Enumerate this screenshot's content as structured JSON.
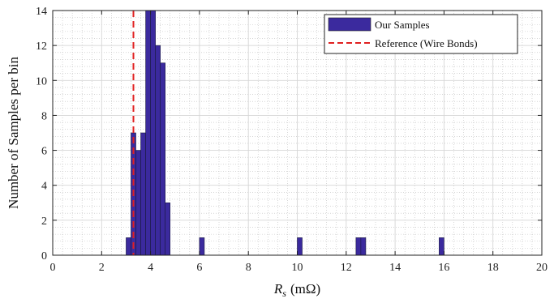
{
  "chart_data": {
    "type": "bar",
    "xlabel": "R_s (mΩ)",
    "xlabel_main": "R",
    "xlabel_sub": "s",
    "xlabel_unit": "(mΩ)",
    "ylabel": "Number of Samples per bin",
    "xlim": [
      0,
      20
    ],
    "ylim": [
      0,
      14
    ],
    "xticks": [
      0,
      2,
      4,
      6,
      8,
      10,
      12,
      14,
      16,
      18,
      20
    ],
    "yticks": [
      0,
      2,
      4,
      6,
      8,
      10,
      12,
      14
    ],
    "grid": true,
    "minor_grid": true,
    "legend_position": "top-right",
    "bin_width": 0.2,
    "series": [
      {
        "name": "Our Samples",
        "color": "#3b2a9e",
        "bins": [
          {
            "x0": 3.0,
            "x1": 3.2,
            "count": 1
          },
          {
            "x0": 3.2,
            "x1": 3.4,
            "count": 7
          },
          {
            "x0": 3.4,
            "x1": 3.6,
            "count": 6
          },
          {
            "x0": 3.6,
            "x1": 3.8,
            "count": 7
          },
          {
            "x0": 3.8,
            "x1": 4.0,
            "count": 14
          },
          {
            "x0": 4.0,
            "x1": 4.2,
            "count": 14
          },
          {
            "x0": 4.2,
            "x1": 4.4,
            "count": 12
          },
          {
            "x0": 4.4,
            "x1": 4.6,
            "count": 11
          },
          {
            "x0": 4.6,
            "x1": 4.8,
            "count": 3
          },
          {
            "x0": 6.0,
            "x1": 6.2,
            "count": 1
          },
          {
            "x0": 10.0,
            "x1": 10.2,
            "count": 1
          },
          {
            "x0": 12.4,
            "x1": 12.6,
            "count": 1
          },
          {
            "x0": 12.6,
            "x1": 12.8,
            "count": 1
          },
          {
            "x0": 15.8,
            "x1": 16.0,
            "count": 1
          }
        ]
      }
    ],
    "reference": {
      "name": "Reference (Wire Bonds)",
      "x": 3.3,
      "color": "#e02020",
      "style": "dashed"
    }
  }
}
